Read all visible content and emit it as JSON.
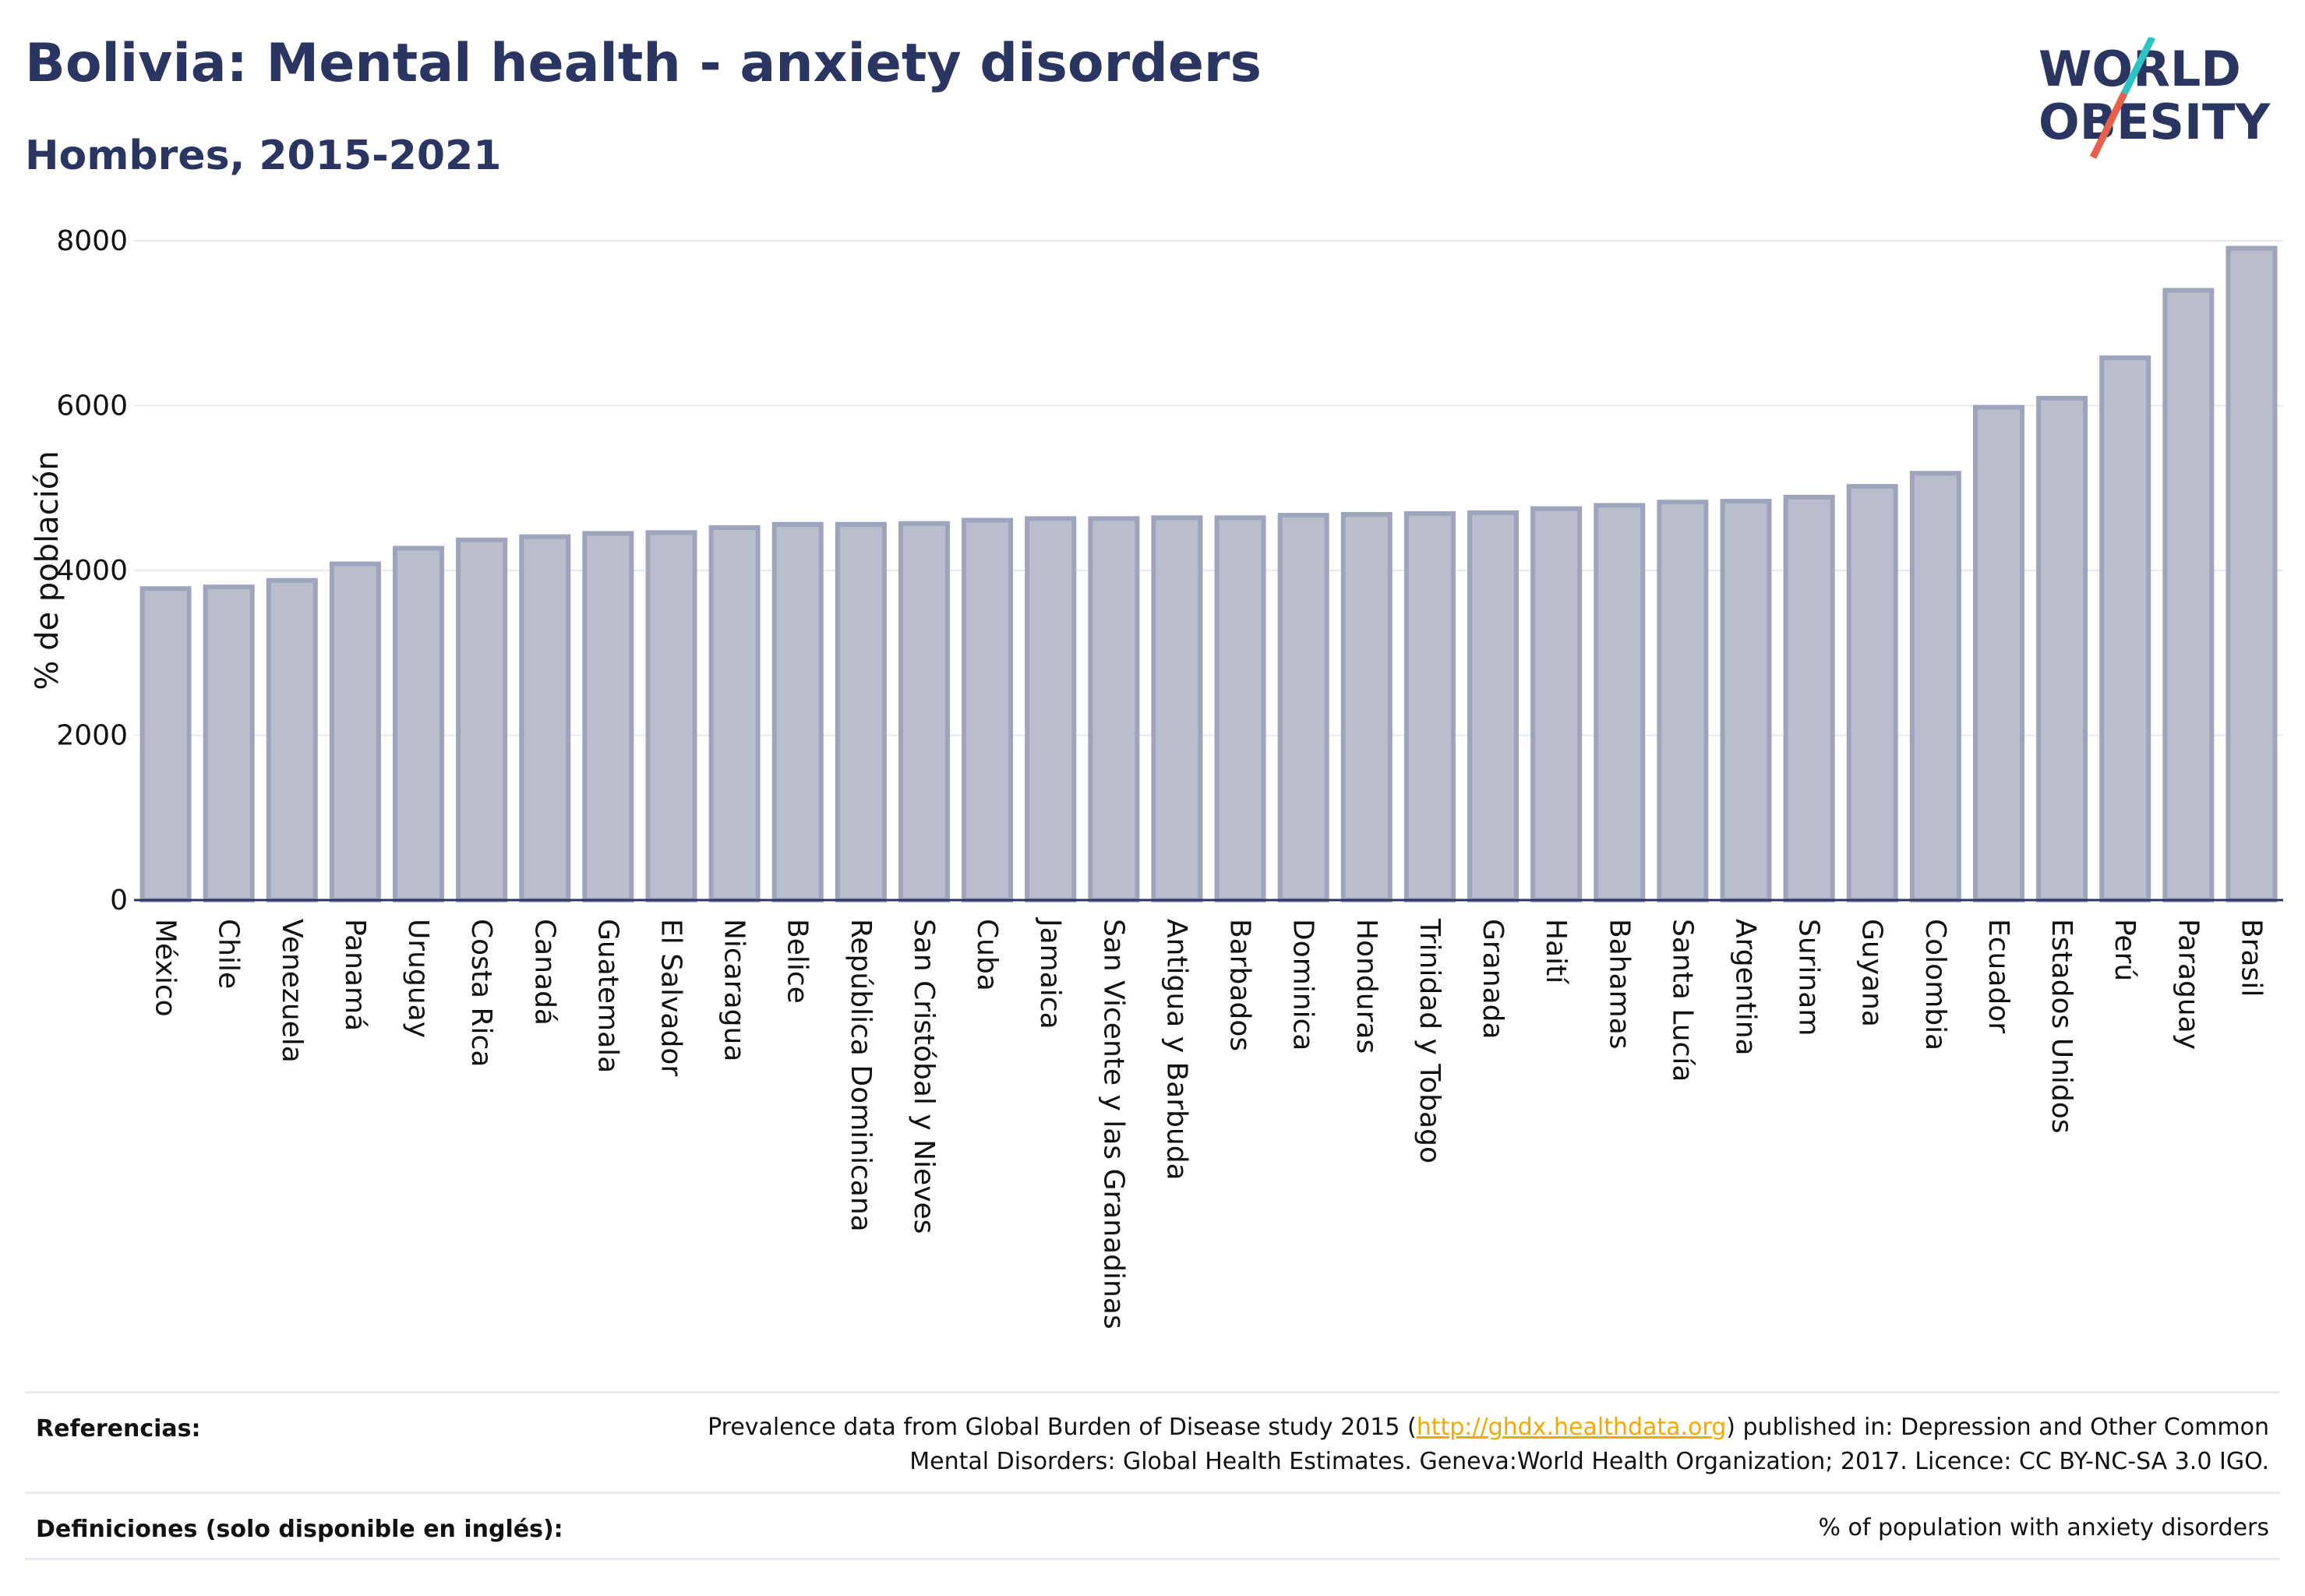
{
  "header": {
    "title": "Bolivia: Mental health - anxiety disorders",
    "subtitle": "Hombres, 2015-2021"
  },
  "logo": {
    "line1": "WORLD",
    "line2": "OBESITY",
    "slash_colors": [
      "#2ec4c6",
      "#e8604c"
    ],
    "text_color": "#2b3562"
  },
  "chart_data": {
    "type": "bar",
    "ylabel": "% de población",
    "xlabel": "",
    "ylim": [
      0,
      8000
    ],
    "yticks": [
      0,
      2000,
      4000,
      6000,
      8000
    ],
    "grid": true,
    "bar_fill": "#b9bdcc",
    "bar_stroke": "#9fa4bd",
    "categories": [
      "México",
      "Chile",
      "Venezuela",
      "Panamá",
      "Uruguay",
      "Costa Rica",
      "Canadá",
      "Guatemala",
      "El Salvador",
      "Nicaragua",
      "Belice",
      "República Dominicana",
      "San Cristóbal y Nieves",
      "Cuba",
      "Jamaica",
      "San Vicente y las Granadinas",
      "Antigua y Barbuda",
      "Barbados",
      "Dominica",
      "Honduras",
      "Trinidad y Tobago",
      "Granada",
      "Haití",
      "Bahamas",
      "Santa Lucía",
      "Argentina",
      "Surinam",
      "Guyana",
      "Colombia",
      "Ecuador",
      "Estados Unidos",
      "Perú",
      "Paraguay",
      "Brasil"
    ],
    "values": [
      3780,
      3800,
      3880,
      4080,
      4270,
      4370,
      4410,
      4450,
      4460,
      4520,
      4560,
      4560,
      4570,
      4610,
      4630,
      4630,
      4640,
      4640,
      4670,
      4680,
      4690,
      4700,
      4750,
      4790,
      4830,
      4840,
      4890,
      5020,
      5180,
      5980,
      6090,
      6580,
      7400,
      7910
    ]
  },
  "references": {
    "label": "Referencias:",
    "text_before": "Prevalence data from Global Burden of Disease study 2015 (",
    "link": "http://ghdx.healthdata.org",
    "text_after_line1": ") published in: Depression and Other Common",
    "line2": "Mental Disorders: Global Health Estimates. Geneva:World Health Organization; 2017. Licence: CC BY-NC-SA 3.0 IGO."
  },
  "definitions": {
    "label": "Definiciones (solo disponible en inglés):",
    "text": "% of population with anxiety disorders"
  }
}
